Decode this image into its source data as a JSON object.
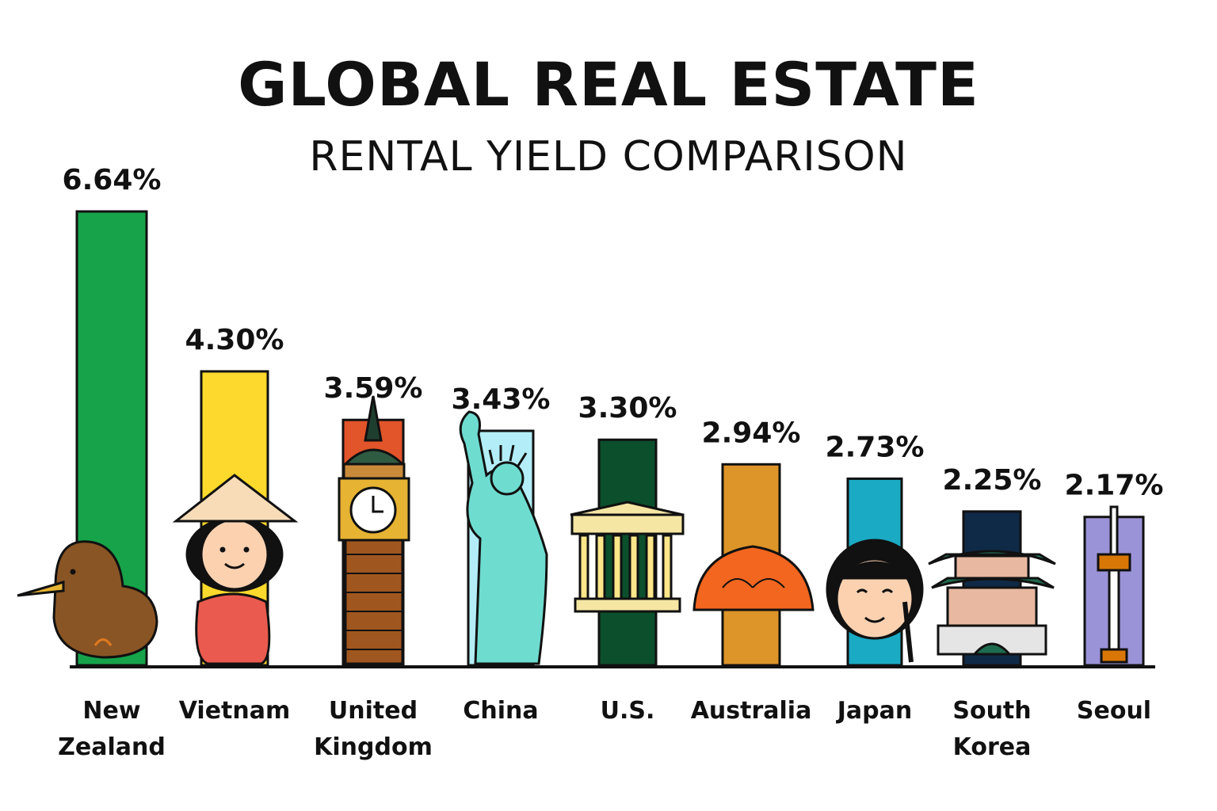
{
  "chart_data": {
    "type": "bar",
    "title": "GLOBAL REAL ESTATE",
    "subtitle": "RENTAL YIELD COMPARISON",
    "xlabel": "",
    "ylabel": "",
    "ylim": [
      0,
      6.64
    ],
    "grid": false,
    "categories": [
      "New Zealand",
      "Vietnam",
      "United Kingdom",
      "China",
      "U.S.",
      "Australia",
      "Japan",
      "South Korea",
      "Seoul"
    ],
    "category_lines": [
      [
        "New",
        "Zealand"
      ],
      [
        "Vietnam"
      ],
      [
        "United",
        "Kingdom"
      ],
      [
        "China"
      ],
      [
        "U.S."
      ],
      [
        "Australia"
      ],
      [
        "Japan"
      ],
      [
        "South",
        "Korea"
      ],
      [
        "Seoul"
      ]
    ],
    "values": [
      6.64,
      4.3,
      3.59,
      3.43,
      3.3,
      2.94,
      2.73,
      2.25,
      2.17
    ],
    "data_labels": [
      "6.64%",
      "4.30%",
      "3.59%",
      "3.43%",
      "3.30%",
      "2.94%",
      "2.73%",
      "2.25%",
      "2.17%"
    ],
    "colors": [
      "#16a34a",
      "#fcd92c",
      "#e2542a",
      "#b3eef8",
      "#0b4f2c",
      "#dd9428",
      "#1aaac4",
      "#0f2a47",
      "#9b93d8"
    ],
    "icons": [
      "kiwi-bird-icon",
      "vietnamese-girl-icon",
      "big-ben-icon",
      "statue-of-liberty-icon",
      "columned-building-icon",
      "opera-house-icon",
      "japanese-girl-icon",
      "korean-palace-icon",
      "seoul-tower-icon"
    ]
  }
}
